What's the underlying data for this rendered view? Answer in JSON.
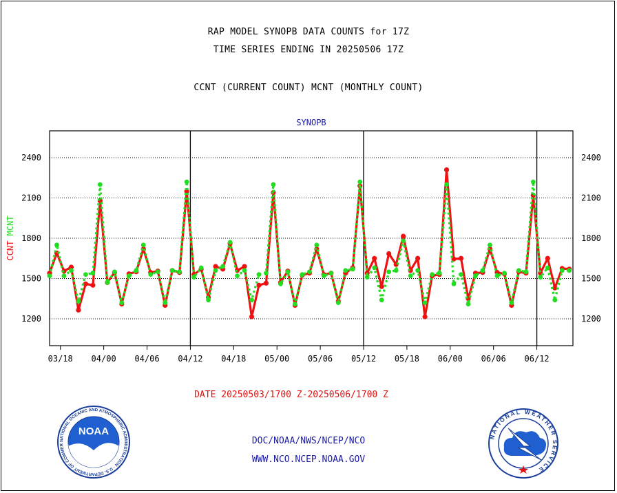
{
  "titles": {
    "line1": "RAP MODEL SYNOPB DATA COUNTS for 17Z",
    "line2": "TIME SERIES ENDING IN 20250506 17Z",
    "line3": "CCNT (CURRENT COUNT) MCNT (MONTHLY COUNT)"
  },
  "date_range": "DATE 20250503/1700 Z-20250506/1700 Z",
  "footer": {
    "org": "DOC/NOAA/NWS/NCEP/NCO",
    "url": "WWW.NCO.NCEP.NOAA.GOV"
  },
  "logos": {
    "left": {
      "text": "NOAA",
      "ring": "NATIONAL OCEANIC AND ATMOSPHERIC ADMINISTRATION · U.S. DEPARTMENT OF COMMERCE"
    },
    "right": {
      "text": "NATIONAL WEATHER SERVICE"
    }
  },
  "colors": {
    "ccnt": "#ee1111",
    "mcnt": "#22dd22",
    "label_blue": "#1a1aa6",
    "grid": "#000000"
  },
  "chart_data": {
    "type": "line",
    "title": "SYNOPB",
    "ylabel_parts": [
      {
        "text": "CCNT",
        "color": "#ee1111"
      },
      {
        "text": "MCNT",
        "color": "#22dd22"
      }
    ],
    "xlabel": "",
    "ylim": [
      1000,
      2600
    ],
    "yticks": [
      1200,
      1500,
      1800,
      2100,
      2400
    ],
    "x_tick_labels": [
      "03/18",
      "04/00",
      "04/06",
      "04/12",
      "04/18",
      "05/00",
      "05/06",
      "05/12",
      "05/18",
      "06/00",
      "06/06",
      "06/12"
    ],
    "x_tick_positions": [
      1.5,
      7.5,
      13.5,
      19.5,
      25.5,
      31.5,
      37.5,
      43.5,
      49.5,
      55.5,
      61.5,
      67.5
    ],
    "day_boundaries": [
      19.5,
      43.5,
      67.5
    ],
    "x_range": [
      0,
      72.5
    ],
    "grid": true,
    "series": [
      {
        "name": "CCNT",
        "values": [
          1540,
          1690,
          1555,
          1585,
          1265,
          1460,
          1450,
          2080,
          1470,
          1545,
          1310,
          1535,
          1550,
          1720,
          1545,
          1555,
          1300,
          1560,
          1545,
          2150,
          1530,
          1570,
          1360,
          1590,
          1570,
          1760,
          1560,
          1590,
          1215,
          1450,
          1465,
          2140,
          1470,
          1555,
          1300,
          1525,
          1540,
          1720,
          1530,
          1540,
          1330,
          1540,
          1580,
          2190,
          1540,
          1650,
          1440,
          1685,
          1605,
          1815,
          1560,
          1650,
          1215,
          1520,
          1530,
          2310,
          1645,
          1650,
          1350,
          1540,
          1545,
          1720,
          1545,
          1535,
          1300,
          1550,
          1540,
          2120,
          1540,
          1650,
          1430,
          1575,
          1570
        ]
      },
      {
        "name": "MCNT",
        "values": [
          1520,
          1750,
          1520,
          1560,
          1330,
          1530,
          1540,
          2200,
          1470,
          1550,
          1320,
          1520,
          1560,
          1750,
          1530,
          1550,
          1320,
          1560,
          1550,
          2220,
          1510,
          1580,
          1340,
          1560,
          1590,
          1770,
          1520,
          1560,
          1340,
          1530,
          1540,
          2200,
          1460,
          1550,
          1310,
          1530,
          1550,
          1750,
          1520,
          1540,
          1320,
          1560,
          1570,
          2220,
          1510,
          1580,
          1340,
          1550,
          1560,
          1780,
          1520,
          1560,
          1320,
          1530,
          1540,
          2200,
          1460,
          1530,
          1310,
          1520,
          1560,
          1750,
          1520,
          1540,
          1320,
          1560,
          1550,
          2220,
          1510,
          1580,
          1340,
          1560,
          1560
        ]
      }
    ]
  }
}
